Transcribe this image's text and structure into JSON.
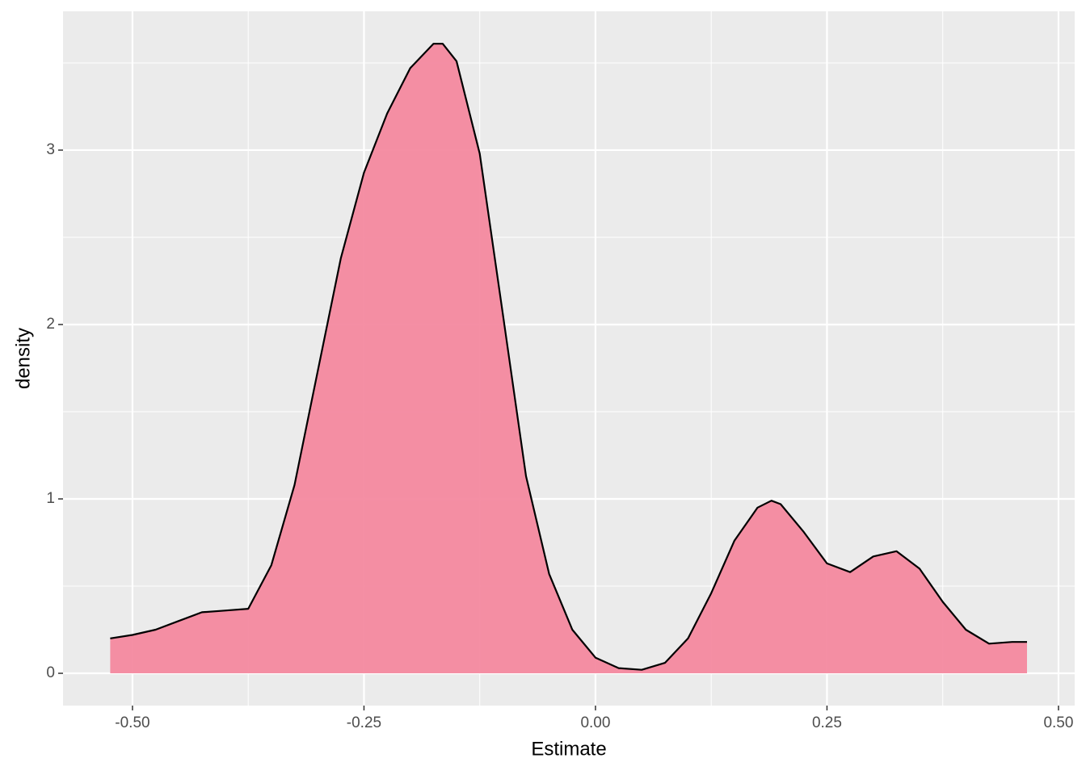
{
  "chart_data": {
    "type": "density",
    "x_label": "Estimate",
    "y_label": "density",
    "x": [
      -0.524,
      -0.5,
      -0.475,
      -0.45,
      -0.425,
      -0.4,
      -0.375,
      -0.35,
      -0.325,
      -0.3,
      -0.275,
      -0.25,
      -0.225,
      -0.2,
      -0.175,
      -0.165,
      -0.15,
      -0.125,
      -0.1,
      -0.075,
      -0.05,
      -0.025,
      0.0,
      0.025,
      0.05,
      0.075,
      0.1,
      0.125,
      0.15,
      0.175,
      0.19,
      0.2,
      0.225,
      0.25,
      0.275,
      0.3,
      0.325,
      0.35,
      0.375,
      0.4,
      0.425,
      0.45,
      0.466
    ],
    "values": [
      0.2,
      0.22,
      0.25,
      0.3,
      0.35,
      0.36,
      0.37,
      0.62,
      1.08,
      1.73,
      2.38,
      2.87,
      3.21,
      3.47,
      3.61,
      3.61,
      3.51,
      2.98,
      2.06,
      1.13,
      0.57,
      0.25,
      0.09,
      0.03,
      0.02,
      0.06,
      0.2,
      0.46,
      0.76,
      0.95,
      0.99,
      0.97,
      0.81,
      0.63,
      0.58,
      0.67,
      0.7,
      0.6,
      0.41,
      0.25,
      0.17,
      0.18,
      0.18
    ],
    "color": "#f4899f",
    "line_color": "#000000",
    "xlim": [
      -0.575,
      0.5175
    ],
    "ylim": [
      -0.185,
      3.796
    ],
    "xticks": [
      {
        "value": -0.5,
        "label": "-0.50"
      },
      {
        "value": -0.25,
        "label": "-0.25"
      },
      {
        "value": 0,
        "label": "0.00"
      },
      {
        "value": 0.25,
        "label": "0.25"
      },
      {
        "value": 0.5,
        "label": "0.50"
      }
    ],
    "yticks": [
      0,
      1,
      2,
      3
    ],
    "x_minor_grid": [
      -0.375,
      -0.125,
      0.125,
      0.375
    ],
    "y_minor_grid": [
      0.5,
      1.5,
      2.5,
      3.5
    ],
    "grid": true
  }
}
